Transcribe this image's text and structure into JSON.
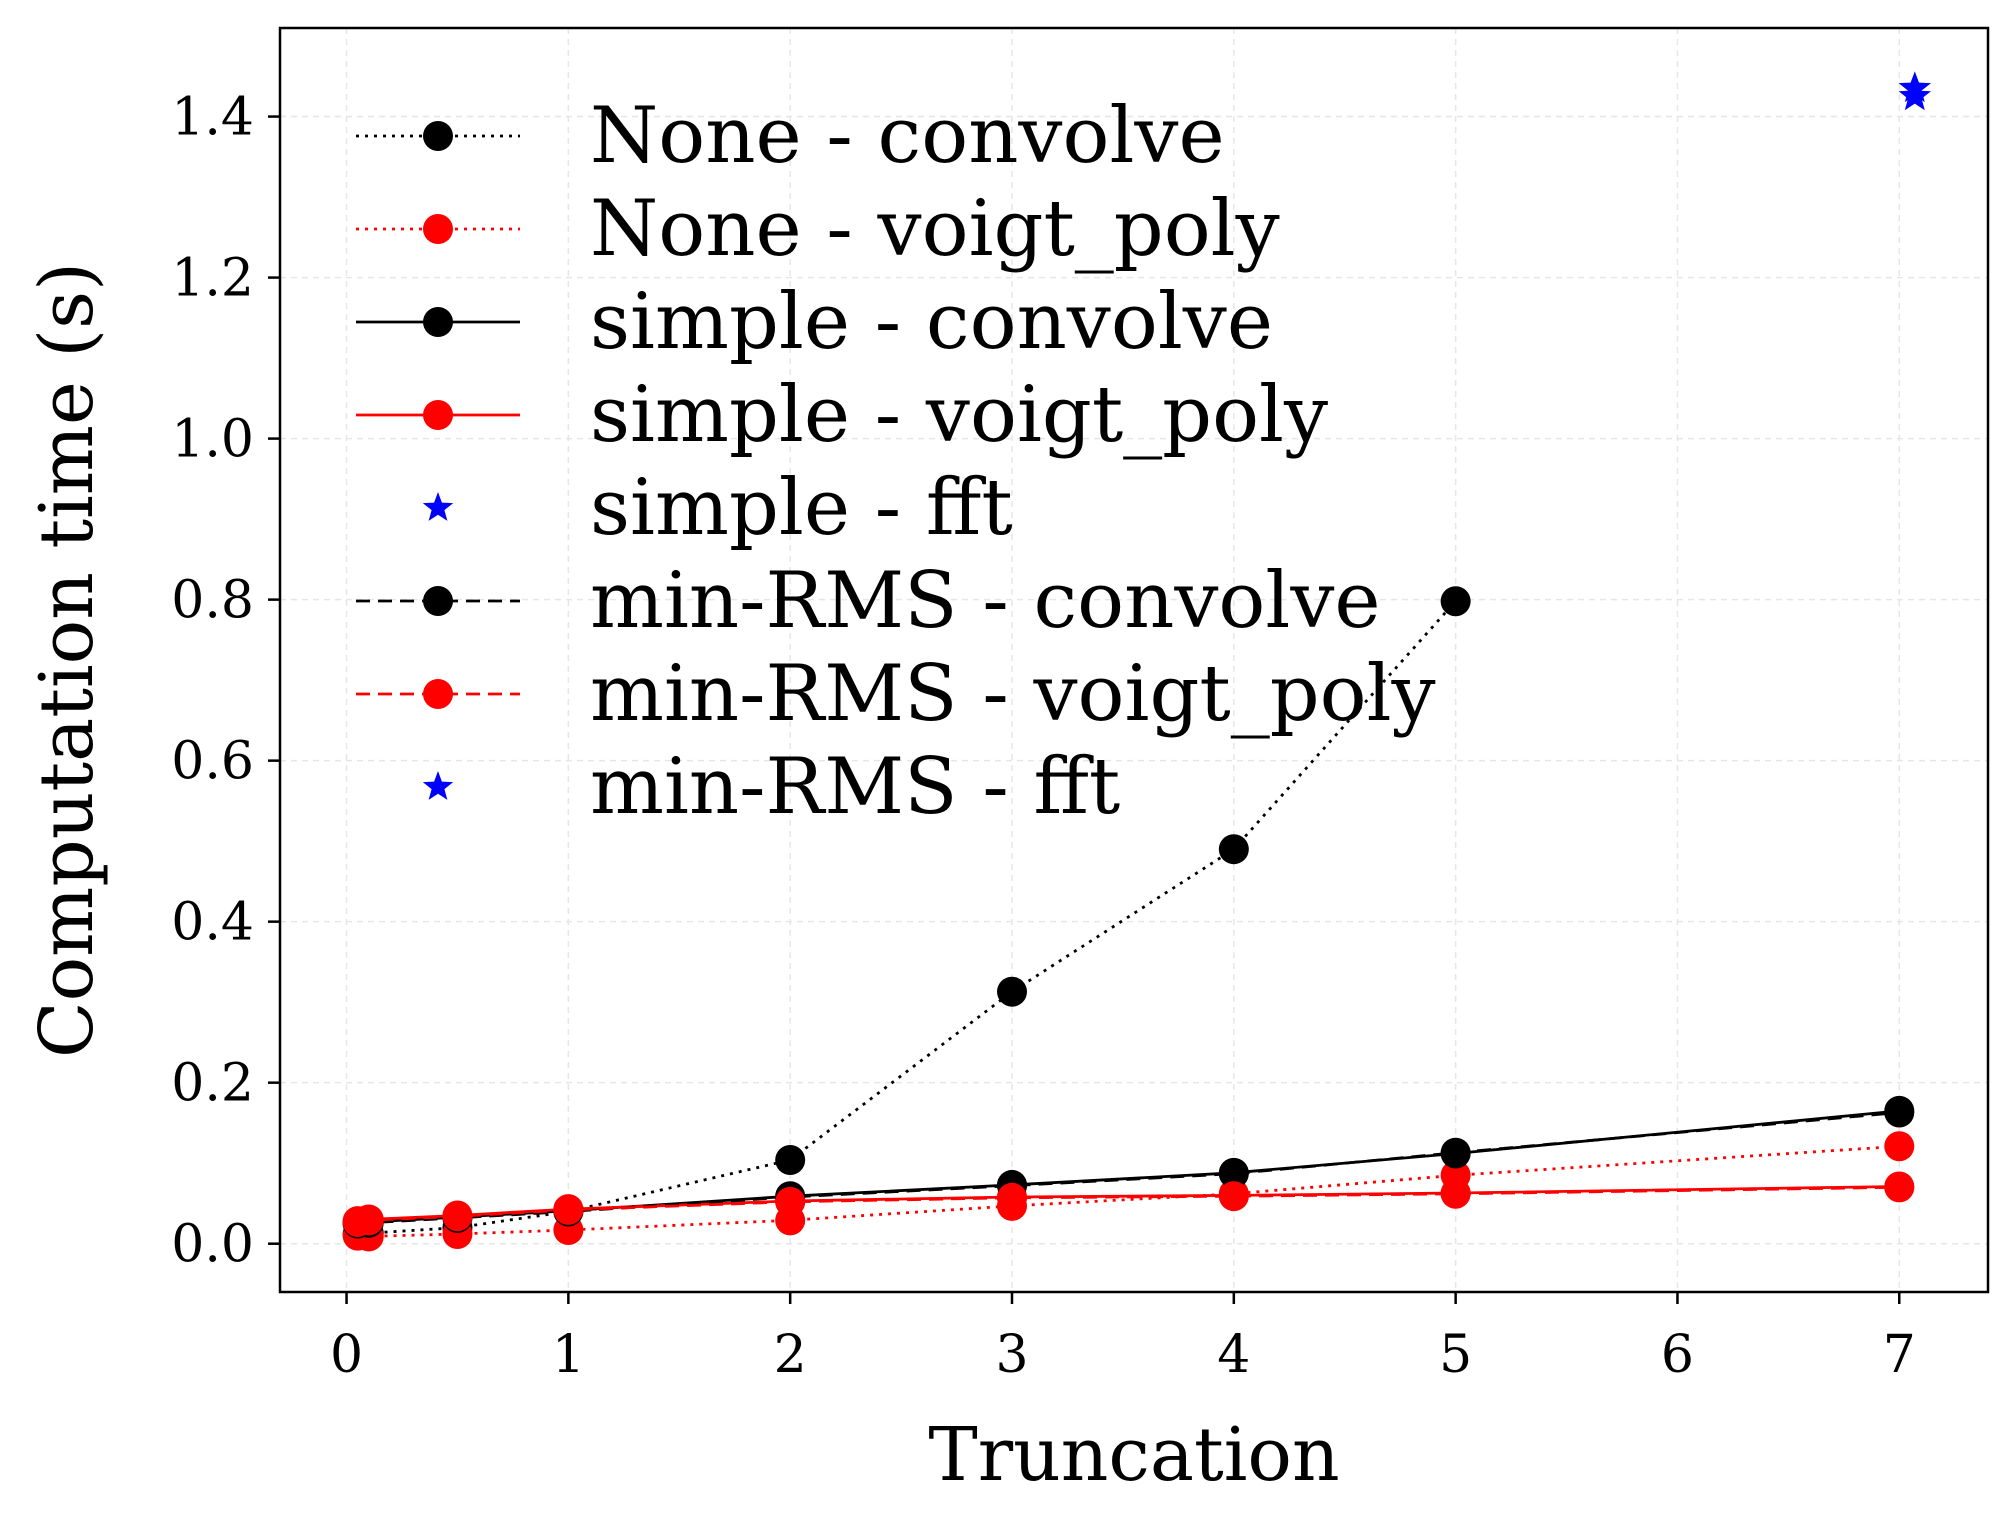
{
  "chart_data": {
    "type": "line",
    "title": "",
    "xlabel": "Truncation",
    "ylabel": "Computation time (s)",
    "xlim": [
      -0.3,
      7.4
    ],
    "ylim": [
      -0.06,
      1.51
    ],
    "xticks": [
      0,
      1,
      2,
      3,
      4,
      5,
      6,
      7
    ],
    "yticks": [
      0.0,
      0.2,
      0.4,
      0.6,
      0.8,
      1.0,
      1.2,
      1.4
    ],
    "xtick_labels": [
      "0",
      "1",
      "2",
      "3",
      "4",
      "5",
      "6",
      "7"
    ],
    "ytick_labels": [
      "0.0",
      "0.2",
      "0.4",
      "0.6",
      "0.8",
      "1.0",
      "1.2",
      "1.4"
    ],
    "grid": true,
    "legend_position": "upper-left",
    "series": [
      {
        "name": "None - convolve",
        "color": "#000000",
        "linestyle": "dotted",
        "marker": "circle",
        "x": [
          0.05,
          0.1,
          0.5,
          1,
          2,
          3,
          4,
          5
        ],
        "y": [
          0.012,
          0.013,
          0.02,
          0.04,
          0.104,
          0.313,
          0.49,
          0.798
        ]
      },
      {
        "name": "None - voigt_poly",
        "color": "#ff0000",
        "linestyle": "dotted",
        "marker": "circle",
        "x": [
          0.05,
          0.1,
          0.5,
          1,
          2,
          3,
          4,
          5,
          7
        ],
        "y": [
          0.01,
          0.009,
          0.012,
          0.017,
          0.029,
          0.047,
          0.062,
          0.085,
          0.121
        ]
      },
      {
        "name": "simple - convolve",
        "color": "#000000",
        "linestyle": "solid",
        "marker": "circle",
        "x": [
          0.05,
          0.1,
          0.5,
          1,
          2,
          3,
          4,
          5,
          7
        ],
        "y": [
          0.026,
          0.027,
          0.033,
          0.041,
          0.059,
          0.073,
          0.088,
          0.112,
          0.165
        ]
      },
      {
        "name": "simple - voigt_poly",
        "color": "#ff0000",
        "linestyle": "solid",
        "marker": "circle",
        "x": [
          0.05,
          0.1,
          0.5,
          1,
          2,
          3,
          4,
          5,
          7
        ],
        "y": [
          0.028,
          0.03,
          0.035,
          0.043,
          0.053,
          0.058,
          0.06,
          0.063,
          0.071
        ]
      },
      {
        "name": "simple - fft",
        "color": "#0000ff",
        "linestyle": "none",
        "marker": "star",
        "x": [
          7.07
        ],
        "y": [
          1.435
        ]
      },
      {
        "name": "min-RMS - convolve",
        "color": "#000000",
        "linestyle": "dashed",
        "marker": "circle",
        "x": [
          0.05,
          0.1,
          0.5,
          1,
          2,
          3,
          4,
          5,
          7
        ],
        "y": [
          0.025,
          0.026,
          0.032,
          0.04,
          0.058,
          0.072,
          0.087,
          0.113,
          0.163
        ]
      },
      {
        "name": "min-RMS - voigt_poly",
        "color": "#ff0000",
        "linestyle": "dashed",
        "marker": "circle",
        "x": [
          0.05,
          0.1,
          0.5,
          1,
          2,
          3,
          4,
          5,
          7
        ],
        "y": [
          0.027,
          0.029,
          0.034,
          0.042,
          0.052,
          0.057,
          0.059,
          0.062,
          0.07
        ]
      },
      {
        "name": "min-RMS - fft",
        "color": "#0000ff",
        "linestyle": "none",
        "marker": "star",
        "x": [
          7.07
        ],
        "y": [
          1.425
        ]
      }
    ]
  }
}
